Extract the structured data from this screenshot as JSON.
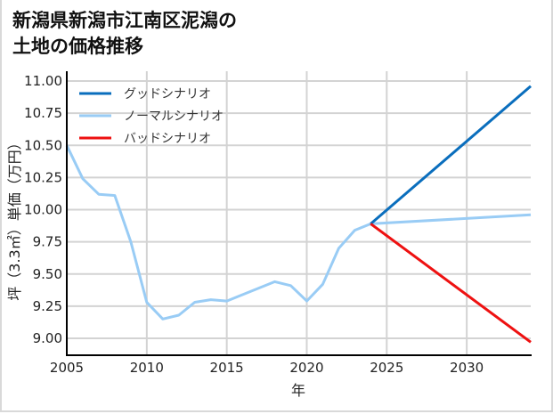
{
  "title_lines": [
    "新潟県新潟市江南区泥潟の",
    "土地の価格推移"
  ],
  "chart_data": {
    "type": "line",
    "title": "新潟県新潟市江南区泥潟の土地の価格推移",
    "xlabel": "年",
    "ylabel": "坪（3.3㎡）単価（万円）",
    "xlim": [
      2005,
      2034
    ],
    "ylim": [
      8.87,
      11.0
    ],
    "grid": true,
    "legend_position": "upper left",
    "x_ticks": [
      2005,
      2010,
      2015,
      2020,
      2025,
      2030
    ],
    "y_ticks": [
      "9.00",
      "9.25",
      "9.50",
      "9.75",
      "10.00",
      "10.25",
      "10.50",
      "10.75",
      "11.00"
    ],
    "series": [
      {
        "name": "グッドシナリオ",
        "color": "#0a6ebd",
        "x": [
          2024,
          2034
        ],
        "values": [
          9.89,
          10.96
        ]
      },
      {
        "name": "ノーマルシナリオ",
        "color": "#99ccf5",
        "x": [
          2005,
          2006,
          2007,
          2008,
          2009,
          2010,
          2011,
          2012,
          2013,
          2014,
          2015,
          2016,
          2017,
          2018,
          2019,
          2020,
          2021,
          2022,
          2023,
          2024,
          2034
        ],
        "values": [
          10.5,
          10.24,
          10.12,
          10.11,
          9.75,
          9.28,
          9.15,
          9.18,
          9.28,
          9.3,
          9.29,
          9.34,
          9.39,
          9.44,
          9.41,
          9.29,
          9.42,
          9.7,
          9.84,
          9.89,
          9.96
        ]
      },
      {
        "name": "バッドシナリオ",
        "color": "#ee1111",
        "x": [
          2024,
          2034
        ],
        "values": [
          9.89,
          8.97
        ]
      }
    ]
  }
}
